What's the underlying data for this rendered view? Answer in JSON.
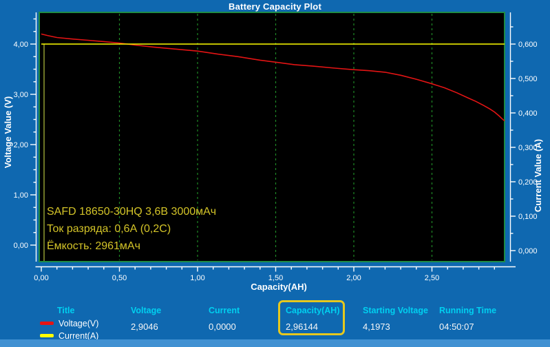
{
  "window": {
    "title": "Battery Capacity Plot",
    "colors": {
      "background": "#0f68b0",
      "bottom_strip": "#4191d2",
      "header_cyan": "#00d0f0",
      "value_white": "#f6f6f6",
      "highlight_box": "#e6c81e",
      "annotation_yellow": "#d4c428"
    }
  },
  "chart_data": {
    "type": "line",
    "title": "Battery Capacity Plot",
    "xlabel": "Capacity(AH)",
    "ylabel_left": "Voltage Value (V)",
    "ylabel_right": "Current Value (A)",
    "xlim": [
      0,
      2.965
    ],
    "ylim_left": [
      -0.33,
      4.63
    ],
    "ylim_right": [
      -0.028,
      0.692
    ],
    "plot_bg": "#000000",
    "frame_color": "#1e8c46",
    "spine_color": "#a8b43a",
    "axis_color": "#ffffff",
    "grid": {
      "vertical": true,
      "horizontal": false,
      "style": "dashed",
      "color": "#1f8a26"
    },
    "x_ticks": [
      {
        "v": 0.0,
        "label": "0,00"
      },
      {
        "v": 0.5,
        "label": "0,50"
      },
      {
        "v": 1.0,
        "label": "1,00"
      },
      {
        "v": 1.5,
        "label": "1,50"
      },
      {
        "v": 2.0,
        "label": "2,00"
      },
      {
        "v": 2.5,
        "label": "2,50"
      }
    ],
    "x_minor_step": 0.1,
    "x_minor_max": 2.9,
    "left_ticks": [
      {
        "v": 0,
        "label": "0,00"
      },
      {
        "v": 1,
        "label": "1,00"
      },
      {
        "v": 2,
        "label": "2,00"
      },
      {
        "v": 3,
        "label": "3,00"
      },
      {
        "v": 4,
        "label": "4,00"
      }
    ],
    "left_minor_step": 0.25,
    "left_minor_max": 4.5,
    "right_ticks": [
      {
        "v": 0.0,
        "label": "0,000"
      },
      {
        "v": 0.1,
        "label": "0,100"
      },
      {
        "v": 0.2,
        "label": "0,200"
      },
      {
        "v": 0.3,
        "label": "0,300"
      },
      {
        "v": 0.4,
        "label": "0,400"
      },
      {
        "v": 0.5,
        "label": "0,500"
      },
      {
        "v": 0.6,
        "label": "0,600"
      }
    ],
    "right_minor_step": 0.05,
    "right_minor_max": 0.65,
    "series": [
      {
        "name": "Voltage(V)",
        "axis": "left",
        "color": "#e41414",
        "points": [
          [
            0.0,
            4.2
          ],
          [
            0.04,
            4.17
          ],
          [
            0.1,
            4.13
          ],
          [
            0.2,
            4.1
          ],
          [
            0.3,
            4.075
          ],
          [
            0.4,
            4.05
          ],
          [
            0.5,
            4.02
          ],
          [
            0.6,
            3.98
          ],
          [
            0.72,
            3.94
          ],
          [
            0.86,
            3.9
          ],
          [
            1.0,
            3.86
          ],
          [
            1.13,
            3.8
          ],
          [
            1.26,
            3.75
          ],
          [
            1.4,
            3.68
          ],
          [
            1.5,
            3.64
          ],
          [
            1.62,
            3.59
          ],
          [
            1.74,
            3.56
          ],
          [
            1.88,
            3.52
          ],
          [
            2.0,
            3.49
          ],
          [
            2.1,
            3.47
          ],
          [
            2.2,
            3.44
          ],
          [
            2.3,
            3.38
          ],
          [
            2.4,
            3.3
          ],
          [
            2.5,
            3.21
          ],
          [
            2.58,
            3.13
          ],
          [
            2.66,
            3.03
          ],
          [
            2.73,
            2.93
          ],
          [
            2.78,
            2.86
          ],
          [
            2.83,
            2.78
          ],
          [
            2.87,
            2.71
          ],
          [
            2.9,
            2.65
          ],
          [
            2.93,
            2.57
          ],
          [
            2.95,
            2.51
          ],
          [
            2.965,
            2.47
          ]
        ]
      },
      {
        "name": "Current(A)",
        "axis": "right",
        "color": "#ffff00",
        "points": [
          [
            0.0,
            0.6
          ],
          [
            2.965,
            0.6
          ]
        ]
      }
    ],
    "annotation_lines": [
      "SAFD 18650-30HQ 3,6В 3000мАч",
      "Ток разряда: 0,6А (0,2С)",
      "Ёмкость: 2961мАч"
    ]
  },
  "stats": {
    "title_header": "Title",
    "legend": [
      {
        "label": "Voltage(V)",
        "color": "#e41414"
      },
      {
        "label": "Current(A)",
        "color": "#ffff00"
      }
    ],
    "fields": [
      {
        "label": "Voltage",
        "value": "2,9046"
      },
      {
        "label": "Current",
        "value": "0,0000"
      },
      {
        "label": "Capacity(AH)",
        "value": "2,96144"
      },
      {
        "label": "Starting Voltage",
        "value": "4,1973"
      },
      {
        "label": "Running Time",
        "value": "04:50:07"
      }
    ]
  }
}
